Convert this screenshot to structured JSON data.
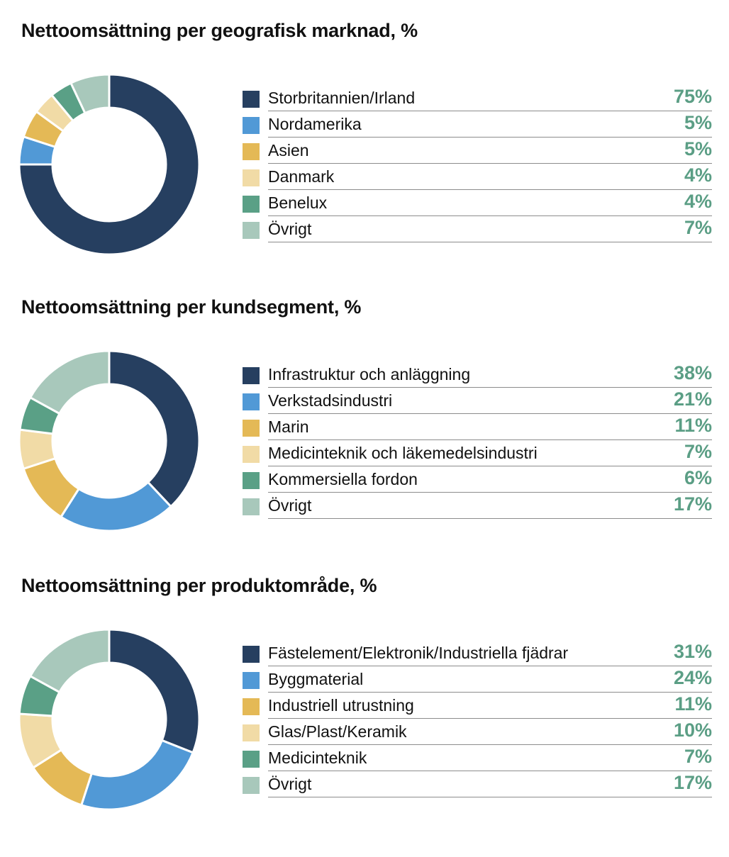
{
  "chart_data": [
    {
      "type": "pie",
      "title": "Nettoomsättning per geografisk marknad, %",
      "categories": [
        "Storbritannien/Irland",
        "Nordamerika",
        "Asien",
        "Danmark",
        "Benelux",
        "Övrigt"
      ],
      "values": [
        75,
        5,
        5,
        4,
        4,
        7
      ],
      "value_labels": [
        "75%",
        "5%",
        "5%",
        "4%",
        "4%",
        "7%"
      ],
      "colors": [
        "#263f60",
        "#5199d6",
        "#e4b956",
        "#f1dba6",
        "#5aa086",
        "#a8c8bb"
      ]
    },
    {
      "type": "pie",
      "title": "Nettoomsättning per kundsegment, %",
      "categories": [
        "Infrastruktur och anläggning",
        "Verkstadsindustri",
        "Marin",
        "Medicinteknik och läkemedelsindustri",
        "Kommersiella fordon",
        "Övrigt"
      ],
      "values": [
        38,
        21,
        11,
        7,
        6,
        17
      ],
      "value_labels": [
        "38%",
        "21%",
        "11%",
        "7%",
        "6%",
        "17%"
      ],
      "colors": [
        "#263f60",
        "#5199d6",
        "#e4b956",
        "#f1dba6",
        "#5aa086",
        "#a8c8bb"
      ]
    },
    {
      "type": "pie",
      "title": "Nettoomsättning per produktområde, %",
      "categories": [
        "Fästelement/Elektronik/Industriella fjädrar",
        "Byggmaterial",
        "Industriell utrustning",
        "Glas/Plast/Keramik",
        "Medicinteknik",
        "Övrigt"
      ],
      "values": [
        31,
        24,
        11,
        10,
        7,
        17
      ],
      "value_labels": [
        "31%",
        "24%",
        "11%",
        "10%",
        "7%",
        "17%"
      ],
      "colors": [
        "#263f60",
        "#5199d6",
        "#e4b956",
        "#f1dba6",
        "#5aa086",
        "#a8c8bb"
      ]
    }
  ]
}
